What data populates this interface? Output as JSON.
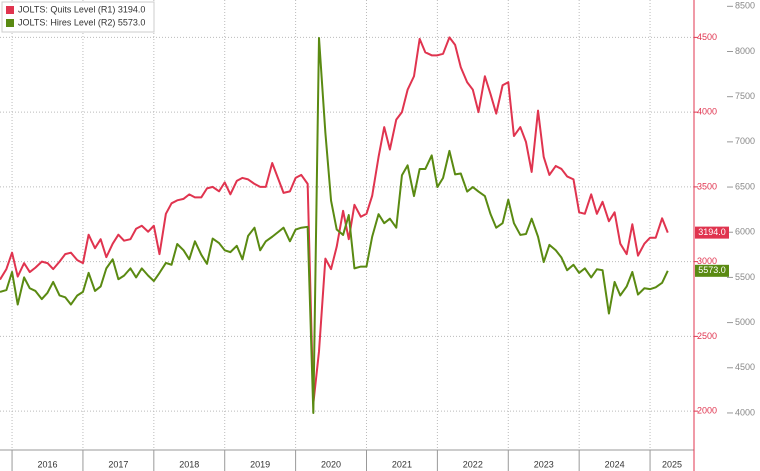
{
  "chart_data": {
    "type": "line",
    "legend": "upper left",
    "grid": true,
    "x": [
      2015.83,
      2015.92,
      2016,
      2016.08,
      2016.17,
      2016.25,
      2016.33,
      2016.42,
      2016.5,
      2016.58,
      2016.67,
      2016.75,
      2016.83,
      2016.92,
      2017,
      2017.08,
      2017.17,
      2017.25,
      2017.33,
      2017.42,
      2017.5,
      2017.58,
      2017.67,
      2017.75,
      2017.83,
      2017.92,
      2018,
      2018.08,
      2018.17,
      2018.25,
      2018.33,
      2018.42,
      2018.5,
      2018.58,
      2018.67,
      2018.75,
      2018.83,
      2018.92,
      2019,
      2019.08,
      2019.17,
      2019.25,
      2019.33,
      2019.42,
      2019.5,
      2019.58,
      2019.67,
      2019.75,
      2019.83,
      2019.92,
      2020,
      2020.08,
      2020.17,
      2020.25,
      2020.33,
      2020.42,
      2020.5,
      2020.58,
      2020.67,
      2020.75,
      2020.83,
      2020.92,
      2021,
      2021.08,
      2021.17,
      2021.25,
      2021.33,
      2021.42,
      2021.5,
      2021.58,
      2021.67,
      2021.75,
      2021.83,
      2021.92,
      2022,
      2022.08,
      2022.17,
      2022.25,
      2022.33,
      2022.42,
      2022.5,
      2022.58,
      2022.67,
      2022.75,
      2022.83,
      2022.92,
      2023,
      2023.08,
      2023.17,
      2023.25,
      2023.33,
      2023.42,
      2023.5,
      2023.58,
      2023.67,
      2023.75,
      2023.83,
      2023.92,
      2024,
      2024.08,
      2024.17,
      2024.25,
      2024.33,
      2024.42,
      2024.5,
      2024.58,
      2024.67,
      2024.75,
      2024.83,
      2024.92,
      2025,
      2025.08,
      2025.17,
      2025.25
    ],
    "xlim": [
      2015.83,
      2025.62
    ],
    "xticks": [
      2016,
      2017,
      2018,
      2019,
      2020,
      2021,
      2022,
      2023,
      2024,
      2025
    ],
    "ylim": [
      1740,
      4750
    ],
    "yticks": [
      2000,
      2500,
      3000,
      3500,
      4000,
      4500
    ],
    "y2lim": [
      3590,
      8570
    ],
    "y2ticks": [
      4000,
      4500,
      5000,
      5500,
      6000,
      6500,
      7000,
      7500,
      8000,
      8500
    ],
    "series": [
      {
        "name": "JOLTS: Quits Level (R1) 3194.0",
        "color": "#e0344f",
        "values": [
          2880,
          2950,
          3060,
          2900,
          2990,
          2930,
          2960,
          3000,
          2990,
          2950,
          3000,
          3050,
          3060,
          3010,
          2990,
          3180,
          3090,
          3150,
          3030,
          3120,
          3180,
          3140,
          3150,
          3220,
          3240,
          3200,
          3240,
          3050,
          3320,
          3390,
          3410,
          3420,
          3450,
          3430,
          3430,
          3490,
          3500,
          3470,
          3530,
          3450,
          3540,
          3560,
          3550,
          3520,
          3500,
          3500,
          3660,
          3560,
          3460,
          3470,
          3560,
          3580,
          3520,
          2050,
          2400,
          3020,
          2950,
          3100,
          3340,
          3150,
          3380,
          3300,
          3320,
          3440,
          3700,
          3900,
          3750,
          3950,
          4000,
          4150,
          4240,
          4490,
          4400,
          4380,
          4380,
          4390,
          4500,
          4450,
          4300,
          4200,
          4150,
          4000,
          4240,
          4120,
          3990,
          4180,
          4200,
          3840,
          3900,
          3800,
          3600,
          4010,
          3700,
          3580,
          3640,
          3620,
          3570,
          3550,
          3330,
          3320,
          3450,
          3320,
          3400,
          3270,
          3330,
          3120,
          3050,
          3250,
          3040,
          3120,
          3160,
          3160,
          3290,
          3194
        ],
        "value_labels": {
          "113": "3194.0"
        }
      },
      {
        "name": "JOLTS: Hires Level (R2) 5573.0",
        "color": "#5a8a12",
        "axis": "y2",
        "values": [
          5340,
          5360,
          5560,
          5200,
          5500,
          5380,
          5350,
          5260,
          5330,
          5450,
          5300,
          5280,
          5200,
          5300,
          5340,
          5550,
          5350,
          5400,
          5600,
          5700,
          5480,
          5520,
          5600,
          5500,
          5600,
          5520,
          5460,
          5550,
          5660,
          5640,
          5870,
          5800,
          5700,
          5900,
          5750,
          5650,
          5930,
          5880,
          5800,
          5780,
          5850,
          5700,
          5960,
          6050,
          5800,
          5900,
          5950,
          6000,
          6050,
          5900,
          6030,
          6050,
          6060,
          4000,
          8150,
          7100,
          6350,
          6030,
          5970,
          6190,
          5600,
          5620,
          5620,
          5950,
          6200,
          6100,
          6150,
          6050,
          6630,
          6740,
          6400,
          6700,
          6700,
          6850,
          6500,
          6600,
          6900,
          6640,
          6650,
          6450,
          6500,
          6450,
          6400,
          6200,
          6050,
          6100,
          6360,
          6100,
          5970,
          5980,
          6150,
          5950,
          5670,
          5860,
          5800,
          5720,
          5580,
          5640,
          5550,
          5600,
          5500,
          5590,
          5580,
          5100,
          5450,
          5300,
          5400,
          5560,
          5310,
          5380,
          5370,
          5390,
          5440,
          5573
        ],
        "value_labels": {
          "113": "5573.0"
        }
      }
    ]
  }
}
